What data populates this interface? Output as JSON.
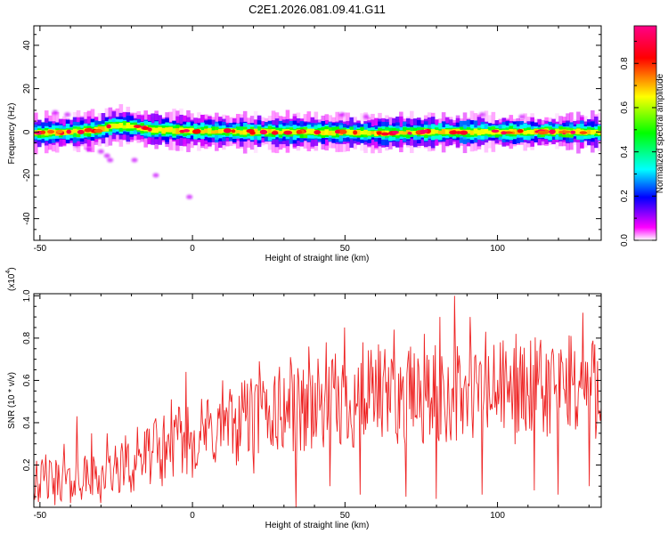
{
  "title": "C2E1.2026.081.09.41.G11",
  "chart_data": [
    {
      "type": "heatmap",
      "xlabel": "Height of straight line (km)",
      "ylabel": "Frequency (Hz)",
      "xlim": [
        -52,
        134
      ],
      "ylim": [
        -50,
        49
      ],
      "xticks": [
        -50,
        0,
        50,
        100
      ],
      "yticks": [
        -40,
        -20,
        0,
        20,
        40
      ],
      "ridge": {
        "frequency_center": [
          [
            -52,
            -0.5
          ],
          [
            -40,
            0
          ],
          [
            -30,
            1
          ],
          [
            -26,
            3
          ],
          [
            -20,
            2.5
          ],
          [
            -12,
            1
          ],
          [
            0,
            0.5
          ],
          [
            20,
            0
          ],
          [
            40,
            0
          ],
          [
            60,
            -0.5
          ],
          [
            80,
            0
          ],
          [
            100,
            0
          ],
          [
            120,
            0
          ],
          [
            134,
            0
          ]
        ],
        "half_width_hz": 3.5
      },
      "scatter_blobs": [
        {
          "x": -38,
          "y": -6
        },
        {
          "x": -34,
          "y": -8
        },
        {
          "x": -30,
          "y": -9
        },
        {
          "x": -28,
          "y": -11
        },
        {
          "x": -27,
          "y": -13
        },
        {
          "x": -19,
          "y": -13
        },
        {
          "x": -12,
          "y": -20
        },
        {
          "x": -1,
          "y": -30
        },
        {
          "x": -45,
          "y": 9
        },
        {
          "x": -41,
          "y": 8
        },
        {
          "x": 49,
          "y": 8
        },
        {
          "x": 57,
          "y": 7
        },
        {
          "x": 95,
          "y": 8
        },
        {
          "x": 108,
          "y": 7
        }
      ],
      "colorbar": {
        "label": "Normalized spectral amplitude",
        "range": [
          0,
          0.97
        ],
        "ticks": [
          0.0,
          0.2,
          0.4,
          0.6,
          0.8
        ],
        "tick_labels": [
          "0.0",
          "0.2",
          "0.4",
          "0.6",
          "0.8"
        ],
        "colors": [
          "#ffffff",
          "#ff00ff",
          "#0000ff",
          "#00ffff",
          "#00ff00",
          "#ffff00",
          "#ff0000",
          "#ff0088"
        ]
      }
    },
    {
      "type": "line",
      "xlabel": "Height of straight line (km)",
      "ylabel": "SNR (10 * v/v)",
      "exponent_label": "(x10",
      "exponent_value": "4",
      "exponent_close": ")",
      "xlim": [
        -52,
        134
      ],
      "ylim": [
        0.0,
        1.01
      ],
      "xticks": [
        -50,
        0,
        50,
        100
      ],
      "yticks": [
        0.2,
        0.4,
        0.6,
        0.8,
        1.0
      ],
      "ytick_labels": [
        "0.2",
        "0.4",
        "0.6",
        "0.8",
        "1.0"
      ],
      "color": "#ee2222",
      "trend": [
        [
          -52,
          0.12
        ],
        [
          -30,
          0.15
        ],
        [
          -20,
          0.2
        ],
        [
          -10,
          0.28
        ],
        [
          0,
          0.33
        ],
        [
          10,
          0.37
        ],
        [
          20,
          0.42
        ],
        [
          30,
          0.46
        ],
        [
          50,
          0.5
        ],
        [
          70,
          0.52
        ],
        [
          90,
          0.53
        ],
        [
          110,
          0.55
        ],
        [
          134,
          0.57
        ]
      ],
      "spikes": [
        [
          -51,
          0.22
        ],
        [
          -48,
          0.25
        ],
        [
          -45,
          0.32
        ],
        [
          -42,
          0.3
        ],
        [
          -38,
          0.43
        ],
        [
          -33,
          0.35
        ],
        [
          -28,
          0.35
        ],
        [
          -22,
          0.34
        ],
        [
          -18,
          0.38
        ],
        [
          -12,
          0.42
        ],
        [
          -7,
          0.51
        ],
        [
          -2,
          0.64
        ],
        [
          5,
          0.51
        ],
        [
          10,
          0.6
        ],
        [
          17,
          0.6
        ],
        [
          22,
          0.69
        ],
        [
          27,
          0.62
        ],
        [
          32,
          0.71
        ],
        [
          38,
          0.76
        ],
        [
          44,
          0.78
        ],
        [
          50,
          0.85
        ],
        [
          56,
          0.78
        ],
        [
          61,
          0.77
        ],
        [
          66,
          0.84
        ],
        [
          71,
          0.74
        ],
        [
          76,
          0.82
        ],
        [
          81,
          0.9
        ],
        [
          86,
          1.0
        ],
        [
          91,
          0.9
        ],
        [
          96,
          0.83
        ],
        [
          101,
          0.78
        ],
        [
          106,
          0.82
        ],
        [
          112,
          0.81
        ],
        [
          118,
          0.75
        ],
        [
          124,
          0.81
        ],
        [
          128,
          0.92
        ],
        [
          132,
          0.77
        ]
      ],
      "dips": [
        [
          -45,
          0.01
        ],
        [
          -40,
          0.02
        ],
        [
          -30,
          0.02
        ],
        [
          -20,
          0.07
        ],
        [
          -10,
          0.1
        ],
        [
          0,
          0.14
        ],
        [
          20,
          0.16
        ],
        [
          34,
          0.0
        ],
        [
          45,
          0.1
        ],
        [
          55,
          0.06
        ],
        [
          70,
          0.05
        ],
        [
          80,
          0.04
        ],
        [
          95,
          0.06
        ],
        [
          112,
          0.08
        ],
        [
          120,
          0.06
        ],
        [
          130,
          0.1
        ]
      ]
    }
  ]
}
